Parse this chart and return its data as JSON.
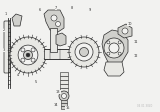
{
  "bg_color": "#f2f2f0",
  "line_color": "#2a2a2a",
  "fill_light": "#e8e8e4",
  "fill_mid": "#d0d0cc",
  "watermark": "04 01 3040",
  "watermark_color": "#bbbbbb",
  "fig_w": 1.6,
  "fig_h": 1.12,
  "dpi": 100
}
